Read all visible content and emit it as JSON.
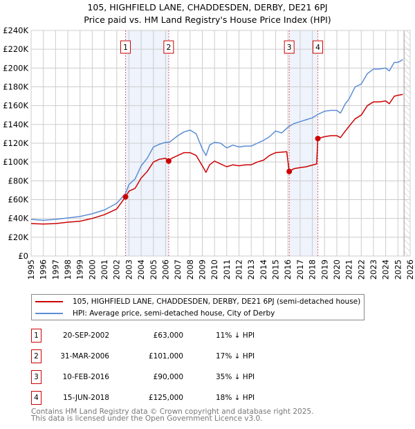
{
  "title": "105, HIGHFIELD LANE, CHADDESDEN, DERBY, DE21 6PJ",
  "subtitle": "Price paid vs. HM Land Registry's House Price Index (HPI)",
  "chart_data": {
    "type": "line",
    "title": "105, HIGHFIELD LANE, CHADDESDEN, DERBY, DE21 6PJ",
    "subtitle": "Price paid vs. HM Land Registry's House Price Index (HPI)",
    "xlim": [
      1995,
      2026
    ],
    "ylim": [
      0,
      240000
    ],
    "x_ticks": [
      "1995",
      "1996",
      "1997",
      "1998",
      "1999",
      "2000",
      "2001",
      "2002",
      "2003",
      "2004",
      "2005",
      "2006",
      "2007",
      "2008",
      "2009",
      "2010",
      "2011",
      "2012",
      "2013",
      "2014",
      "2015",
      "2016",
      "2017",
      "2018",
      "2019",
      "2020",
      "2021",
      "2022",
      "2023",
      "2024",
      "2025",
      "2026"
    ],
    "y_ticks": [
      "£0",
      "£20K",
      "£40K",
      "£60K",
      "£80K",
      "£100K",
      "£120K",
      "£140K",
      "£160K",
      "£180K",
      "£200K",
      "£220K",
      "£240K"
    ],
    "grid": true,
    "forecast_hatch_from": 2025.5,
    "colors": {
      "property": "#cc0000",
      "hpi": "#5b8dd4",
      "shade": "#eef3fc",
      "marker_line": "#e06060"
    },
    "series": [
      {
        "name": "105, HIGHFIELD LANE, CHADDESDEN, DERBY, DE21 6PJ (semi-detached house)",
        "color": "#cc0000",
        "x": [
          1995,
          1996,
          1997,
          1998,
          1999,
          2000,
          2001,
          2002,
          2002.72,
          2003,
          2003.5,
          2004,
          2004.5,
          2005,
          2005.5,
          2006,
          2006.25,
          2006.5,
          2007,
          2007.5,
          2008,
          2008.5,
          2009,
          2009.3,
          2009.6,
          2010,
          2010.5,
          2011,
          2011.5,
          2012,
          2012.5,
          2013,
          2013.5,
          2014,
          2014.5,
          2015,
          2015.9,
          2016.11,
          2016.5,
          2017,
          2017.5,
          2018.35,
          2018.45,
          2019,
          2019.5,
          2020,
          2020.3,
          2020.7,
          2021,
          2021.5,
          2022,
          2022.5,
          2023,
          2023.5,
          2024,
          2024.3,
          2024.7,
          2025,
          2025.4
        ],
        "values": [
          34500,
          34000,
          34500,
          36000,
          37000,
          40000,
          44000,
          50000,
          63000,
          69000,
          72000,
          83000,
          90000,
          100000,
          103000,
          104000,
          101000,
          104000,
          107000,
          110000,
          110000,
          107000,
          96000,
          89000,
          97000,
          101000,
          98000,
          95000,
          97000,
          96000,
          97000,
          97000,
          100000,
          102000,
          107000,
          110000,
          111000,
          90000,
          93000,
          94000,
          95000,
          98000,
          125000,
          127000,
          128000,
          128000,
          126000,
          133000,
          138000,
          146000,
          150000,
          160000,
          164000,
          164000,
          165000,
          162000,
          170000,
          171000,
          172000
        ]
      },
      {
        "name": "HPI: Average price, semi-detached house, City of Derby",
        "color": "#5b8dd4",
        "x": [
          1995,
          1996,
          1997,
          1998,
          1999,
          2000,
          2001,
          2002,
          2002.7,
          2003,
          2003.5,
          2004,
          2004.5,
          2005,
          2005.5,
          2006,
          2006.3,
          2007,
          2007.5,
          2008,
          2008.5,
          2009,
          2009.3,
          2009.6,
          2010,
          2010.5,
          2011,
          2011.5,
          2012,
          2012.5,
          2013,
          2013.5,
          2014,
          2014.5,
          2015,
          2015.5,
          2016,
          2016.5,
          2017,
          2017.5,
          2018,
          2018.5,
          2019,
          2019.5,
          2020,
          2020.3,
          2020.7,
          2021,
          2021.5,
          2022,
          2022.5,
          2023,
          2023.5,
          2024,
          2024.3,
          2024.7,
          2025,
          2025.4
        ],
        "values": [
          39000,
          38000,
          39000,
          40500,
          42000,
          45000,
          49000,
          56000,
          66000,
          76000,
          82000,
          96000,
          104000,
          116000,
          119000,
          121000,
          121000,
          128000,
          132000,
          134000,
          130000,
          114000,
          107000,
          118000,
          121000,
          120000,
          115000,
          118000,
          116000,
          117000,
          117000,
          120000,
          123000,
          127000,
          133000,
          131000,
          137000,
          141000,
          143000,
          145000,
          147000,
          151000,
          154000,
          155000,
          155000,
          152000,
          162000,
          167000,
          180000,
          183000,
          194000,
          199000,
          199000,
          200000,
          197000,
          206000,
          206000,
          209000
        ]
      }
    ],
    "sales": [
      {
        "label": "1",
        "x": 2002.72,
        "value": 63000,
        "date": "20-SEP-2002",
        "price": "£63,000",
        "hpi_diff": "11% ↓ HPI"
      },
      {
        "label": "2",
        "x": 2006.25,
        "value": 101000,
        "date": "31-MAR-2006",
        "price": "£101,000",
        "hpi_diff": "17% ↓ HPI"
      },
      {
        "label": "3",
        "x": 2016.11,
        "value": 90000,
        "date": "10-FEB-2016",
        "price": "£90,000",
        "hpi_diff": "35% ↓ HPI"
      },
      {
        "label": "4",
        "x": 2018.45,
        "value": 125000,
        "date": "15-JUN-2018",
        "price": "£125,000",
        "hpi_diff": "18% ↓ HPI"
      }
    ],
    "shaded_ranges": [
      [
        2002.72,
        2006.25
      ],
      [
        2016.11,
        2018.45
      ]
    ],
    "legend_placement": "below"
  },
  "legend": {
    "property": "105, HIGHFIELD LANE, CHADDESDEN, DERBY, DE21 6PJ (semi-detached house)",
    "hpi": "HPI: Average price, semi-detached house, City of Derby"
  },
  "footer": {
    "line1": "Contains HM Land Registry data © Crown copyright and database right 2025.",
    "line2": "This data is licensed under the Open Government Licence v3.0."
  }
}
